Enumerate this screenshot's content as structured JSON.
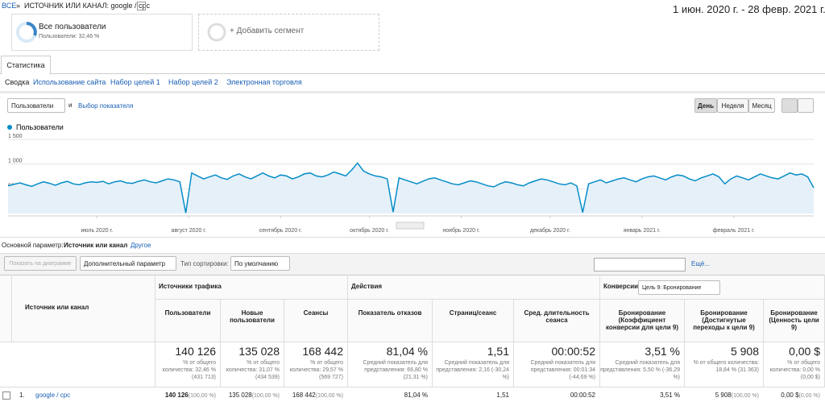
{
  "header": {
    "breadcrumb_all": "ВСЕ",
    "breadcrumb_sep": "»",
    "breadcrumb_current": "ИСТОЧНИК ИЛИ КАНАЛ: google / cpc",
    "date_range": "1 июн. 2020 г. - 28 февр. 2021 г."
  },
  "segments": [
    {
      "name": "Все пользователи",
      "detail": "Пользователи: 32,46 %"
    },
    {
      "name": "+ Добавить сегмент"
    }
  ],
  "tab": "Статистика",
  "subtabs": [
    "Сводка",
    "Использование сайта",
    "Набор целей 1",
    "Набор целей 2",
    "Электронная торговля"
  ],
  "controls": {
    "metric": "Пользователи",
    "and": "и",
    "metric_choice": "Выбор показателя",
    "periods": [
      "День",
      "Неделя",
      "Месяц"
    ]
  },
  "chart_data": {
    "type": "line",
    "series": [
      {
        "name": "Пользователи",
        "color": "#058dc7",
        "values": [
          560,
          590,
          620,
          580,
          550,
          600,
          640,
          610,
          570,
          620,
          650,
          600,
          580,
          620,
          640,
          630,
          650,
          600,
          640,
          660,
          620,
          610,
          650,
          680,
          640,
          620,
          660,
          700,
          680,
          640,
          10,
          820,
          760,
          700,
          740,
          780,
          720,
          690,
          760,
          800,
          740,
          700,
          760,
          820,
          760,
          720,
          780,
          760,
          700,
          740,
          800,
          820,
          760,
          740,
          780,
          840,
          800,
          760,
          880,
          1020,
          860,
          800,
          760,
          740,
          700,
          30,
          720,
          680,
          640,
          600,
          650,
          700,
          720,
          680,
          640,
          600,
          580,
          620,
          660,
          640,
          600,
          560,
          540,
          600,
          640,
          620,
          580,
          560,
          620,
          660,
          700,
          680,
          640,
          600,
          580,
          620,
          560,
          20,
          600,
          640,
          680,
          620,
          660,
          700,
          720,
          680,
          640,
          700,
          740,
          760,
          720,
          680,
          740,
          780,
          760,
          700,
          660,
          720,
          760,
          800,
          740,
          600,
          700,
          760,
          720,
          680,
          740,
          800,
          760,
          720,
          700,
          760,
          820,
          780,
          800,
          740,
          520
        ]
      }
    ],
    "ylim": [
      0,
      1500
    ],
    "yticks": [
      500,
      {
        "value": 1000,
        "label": "1 000"
      },
      {
        "value": 1500,
        "label": "1 500"
      }
    ],
    "xlim": [
      0,
      136
    ],
    "xticks": [
      {
        "value": 15,
        "label": "июль 2020 г."
      },
      {
        "value": 30.5,
        "label": "август 2020 г."
      },
      {
        "value": 46,
        "label": "сентябрь 2020 г."
      },
      {
        "value": 61,
        "label": "октябрь 2020 г."
      },
      {
        "value": 76.5,
        "label": "ноябрь 2020 г."
      },
      {
        "value": 91.5,
        "label": "декабрь 2020 г."
      },
      {
        "value": 107,
        "label": "январь 2021 г."
      },
      {
        "value": 122.5,
        "label": "февраль 2021 г."
      }
    ],
    "grid": true
  },
  "table_controls": {
    "primary_label": "Основной параметр:",
    "primary_value": "Источник или канал",
    "other": "Другое",
    "plot_button": "Показать на диаграмме",
    "secondary": "Дополнительный параметр",
    "sort_label": "Тип сортировки:",
    "sort_value": "По умолчанию",
    "more": "Ещё..."
  },
  "table": {
    "groups": [
      "Источники трафика",
      "Действия",
      "Конверсии"
    ],
    "goal_select": "Цель 9: Бронирование",
    "columns": [
      "Источник или канал",
      "Пользователи",
      "Новые пользователи",
      "Сеансы",
      "Показатель отказов",
      "Страниц/сеанс",
      "Сред. длительность сеанса",
      "Бронирование (Коэффициент конверсии для цели 9)",
      "Бронирование (Достигнутые переходы к цели 9)",
      "Бронирование (Ценность цели 9)"
    ],
    "totals": [
      {
        "value": "140 126",
        "note": "% от общего количества: 32,46 % (431 713)"
      },
      {
        "value": "135 028",
        "note": "% от общего количества: 31,07 % (434 539)"
      },
      {
        "value": "168 442",
        "note": "% от общего количества: 29,57 % (569 727)"
      },
      {
        "value": "81,04 %",
        "note": "Средний показатель для представления: 66,80 % (21,31 %)"
      },
      {
        "value": "1,51",
        "note": "Средний показатель для представления: 2,16 (-30,24 %)"
      },
      {
        "value": "00:00:52",
        "note": "Средний показатель для представления: 00:01:34 (-44,69 %)"
      },
      {
        "value": "3,51 %",
        "note": "Средний показатель для представления: 5,50 % (-36,29 %)"
      },
      {
        "value": "5 908",
        "note": "% от общего количества: 18,84 % (31 363)"
      },
      {
        "value": "0,00 $",
        "note": "% от общего количества: 0,00 % (0,00 $)"
      }
    ],
    "rows": [
      {
        "index": "1.",
        "name": "google / cpc",
        "cells": [
          {
            "value": "140 126",
            "share": "(100,00 %)"
          },
          {
            "value": "135 028",
            "share": "(100,00 %)"
          },
          {
            "value": "168 442",
            "share": "(100,00 %)"
          },
          {
            "value": "81,04 %"
          },
          {
            "value": "1,51"
          },
          {
            "value": "00:00:52"
          },
          {
            "value": "3,51 %"
          },
          {
            "value": "5 908",
            "share": "(100,00 %)"
          },
          {
            "value": "0,00 $",
            "share": "(0,00 %)"
          }
        ]
      }
    ]
  }
}
